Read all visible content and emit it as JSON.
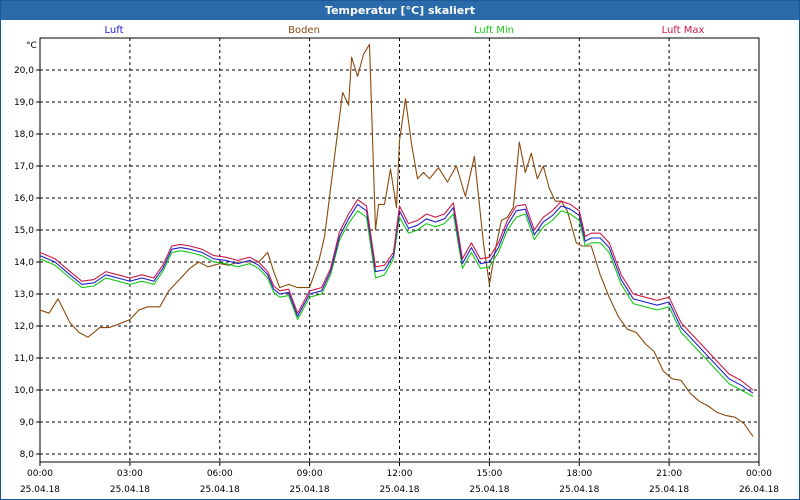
{
  "window": {
    "title": "Temperatur [°C] skaliert"
  },
  "chart_data": {
    "type": "line",
    "title": "Temperatur [°C] skaliert",
    "ylabel": "°C",
    "xlabel": "",
    "ylim": [
      8.0,
      21.0
    ],
    "xlim": [
      0,
      24
    ],
    "grid": true,
    "yticks": [
      8.0,
      9.0,
      10.0,
      11.0,
      12.0,
      13.0,
      14.0,
      15.0,
      16.0,
      17.0,
      18.0,
      19.0,
      20.0
    ],
    "ytick_labels": [
      "8,0",
      "9,0",
      "10,0",
      "11,0",
      "12,0",
      "13,0",
      "14,0",
      "15,0",
      "16,0",
      "17,0",
      "18,0",
      "19,0",
      "20,0"
    ],
    "xticks": [
      0,
      3,
      6,
      9,
      12,
      15,
      18,
      21,
      24
    ],
    "xtick_labels": [
      {
        "time": "00:00",
        "date": "25.04.18"
      },
      {
        "time": "03:00",
        "date": "25.04.18"
      },
      {
        "time": "06:00",
        "date": "25.04.18"
      },
      {
        "time": "09:00",
        "date": "25.04.18"
      },
      {
        "time": "12:00",
        "date": "25.04.18"
      },
      {
        "time": "15:00",
        "date": "25.04.18"
      },
      {
        "time": "18:00",
        "date": "25.04.18"
      },
      {
        "time": "21:00",
        "date": "25.04.18"
      },
      {
        "time": "00:00",
        "date": "26.04.18"
      }
    ],
    "series": [
      {
        "name": "Boden",
        "color": "#8b4a0c",
        "x": [
          0,
          0.3,
          0.6,
          1.0,
          1.3,
          1.6,
          2.0,
          2.3,
          2.6,
          3.0,
          3.3,
          3.6,
          4.0,
          4.3,
          4.6,
          5.0,
          5.3,
          5.6,
          6.0,
          6.3,
          6.6,
          7.0,
          7.3,
          7.6,
          7.8,
          8.0,
          8.3,
          8.6,
          9.0,
          9.3,
          9.5,
          9.7,
          9.9,
          10.1,
          10.3,
          10.4,
          10.6,
          10.8,
          11.0,
          11.2,
          11.3,
          11.5,
          11.7,
          11.9,
          12.0,
          12.2,
          12.4,
          12.6,
          12.8,
          13.0,
          13.3,
          13.6,
          13.9,
          14.2,
          14.5,
          14.8,
          15.0,
          15.2,
          15.4,
          15.6,
          15.8,
          16.0,
          16.2,
          16.4,
          16.6,
          16.8,
          17.0,
          17.2,
          17.4,
          17.6,
          17.9,
          18.1,
          18.4,
          18.7,
          19.0,
          19.3,
          19.6,
          19.9,
          20.2,
          20.5,
          20.8,
          21.1,
          21.4,
          21.7,
          22.0,
          22.3,
          22.6,
          22.9,
          23.2,
          23.5,
          23.8
        ],
        "values": [
          12.5,
          12.4,
          12.85,
          12.1,
          11.8,
          11.65,
          11.95,
          11.95,
          12.05,
          12.2,
          12.5,
          12.6,
          12.6,
          13.1,
          13.4,
          13.8,
          14.0,
          13.85,
          13.95,
          13.9,
          14.0,
          14.0,
          14.0,
          14.3,
          13.7,
          13.2,
          13.3,
          13.2,
          13.2,
          14.0,
          14.8,
          16.3,
          17.8,
          19.3,
          18.9,
          20.4,
          19.8,
          20.5,
          20.8,
          15.0,
          15.8,
          15.8,
          16.9,
          15.7,
          17.8,
          19.1,
          17.7,
          16.6,
          16.8,
          16.6,
          16.95,
          16.5,
          17.0,
          16.05,
          17.3,
          14.6,
          13.3,
          14.4,
          15.3,
          15.4,
          15.7,
          17.75,
          16.8,
          17.4,
          16.6,
          17.0,
          16.3,
          15.9,
          15.9,
          15.6,
          14.6,
          14.5,
          14.5,
          13.6,
          12.9,
          12.3,
          11.9,
          11.8,
          11.45,
          11.2,
          10.6,
          10.35,
          10.3,
          9.9,
          9.65,
          9.5,
          9.3,
          9.2,
          9.15,
          8.95,
          8.55
        ]
      },
      {
        "name": "Luft Min",
        "color": "#18c818",
        "x": [
          0,
          0.5,
          1.0,
          1.4,
          1.8,
          2.2,
          2.6,
          3.0,
          3.4,
          3.8,
          4.1,
          4.4,
          4.7,
          5.0,
          5.4,
          5.8,
          6.2,
          6.6,
          7.0,
          7.3,
          7.6,
          7.8,
          8.0,
          8.3,
          8.6,
          9.0,
          9.4,
          9.7,
          10.0,
          10.3,
          10.6,
          10.9,
          11.2,
          11.5,
          11.8,
          12.0,
          12.3,
          12.6,
          12.9,
          13.2,
          13.5,
          13.8,
          14.1,
          14.4,
          14.7,
          15.0,
          15.3,
          15.6,
          15.9,
          16.2,
          16.5,
          16.8,
          17.1,
          17.4,
          17.7,
          18.0,
          18.2,
          18.4,
          18.7,
          19.0,
          19.4,
          19.8,
          20.2,
          20.6,
          21.0,
          21.4,
          21.8,
          22.2,
          22.6,
          23.0,
          23.4,
          23.8
        ],
        "values": [
          14.1,
          13.9,
          13.5,
          13.2,
          13.25,
          13.5,
          13.4,
          13.3,
          13.4,
          13.3,
          13.7,
          14.3,
          14.35,
          14.3,
          14.2,
          14.0,
          13.95,
          13.85,
          13.95,
          13.8,
          13.5,
          13.05,
          12.9,
          12.95,
          12.2,
          12.9,
          13.0,
          13.6,
          14.7,
          15.2,
          15.6,
          15.4,
          13.5,
          13.6,
          14.1,
          15.4,
          14.9,
          15.0,
          15.2,
          15.1,
          15.2,
          15.5,
          13.8,
          14.3,
          13.8,
          13.85,
          14.3,
          15.0,
          15.4,
          15.5,
          14.7,
          15.1,
          15.3,
          15.6,
          15.5,
          15.3,
          14.5,
          14.6,
          14.6,
          14.3,
          13.3,
          12.7,
          12.6,
          12.5,
          12.6,
          11.8,
          11.4,
          11.0,
          10.6,
          10.2,
          10.0,
          9.8
        ]
      },
      {
        "name": "Luft",
        "color": "#2222cc",
        "x": [
          0,
          0.5,
          1.0,
          1.4,
          1.8,
          2.2,
          2.6,
          3.0,
          3.4,
          3.8,
          4.1,
          4.4,
          4.7,
          5.0,
          5.4,
          5.8,
          6.2,
          6.6,
          7.0,
          7.3,
          7.6,
          7.8,
          8.0,
          8.3,
          8.6,
          9.0,
          9.4,
          9.7,
          10.0,
          10.3,
          10.6,
          10.9,
          11.2,
          11.5,
          11.8,
          12.0,
          12.3,
          12.6,
          12.9,
          13.2,
          13.5,
          13.8,
          14.1,
          14.4,
          14.7,
          15.0,
          15.3,
          15.6,
          15.9,
          16.2,
          16.5,
          16.8,
          17.1,
          17.4,
          17.7,
          18.0,
          18.2,
          18.4,
          18.7,
          19.0,
          19.4,
          19.8,
          20.2,
          20.6,
          21.0,
          21.4,
          21.8,
          22.2,
          22.6,
          23.0,
          23.4,
          23.8
        ],
        "values": [
          14.2,
          14.0,
          13.6,
          13.3,
          13.35,
          13.6,
          13.5,
          13.4,
          13.5,
          13.4,
          13.8,
          14.4,
          14.45,
          14.4,
          14.3,
          14.1,
          14.05,
          13.95,
          14.05,
          13.9,
          13.6,
          13.15,
          13.0,
          13.05,
          12.3,
          13.0,
          13.1,
          13.7,
          14.8,
          15.35,
          15.8,
          15.6,
          13.7,
          13.75,
          14.2,
          15.6,
          15.05,
          15.15,
          15.35,
          15.25,
          15.35,
          15.7,
          13.95,
          14.45,
          13.95,
          14.0,
          14.45,
          15.15,
          15.6,
          15.65,
          14.85,
          15.25,
          15.45,
          15.75,
          15.65,
          15.45,
          14.65,
          14.75,
          14.75,
          14.45,
          13.45,
          12.85,
          12.75,
          12.65,
          12.75,
          11.95,
          11.55,
          11.15,
          10.75,
          10.35,
          10.15,
          9.9
        ]
      },
      {
        "name": "Luft Max",
        "color": "#cc1a4a",
        "x": [
          0,
          0.5,
          1.0,
          1.4,
          1.8,
          2.2,
          2.6,
          3.0,
          3.4,
          3.8,
          4.1,
          4.4,
          4.7,
          5.0,
          5.4,
          5.8,
          6.2,
          6.6,
          7.0,
          7.3,
          7.6,
          7.8,
          8.0,
          8.3,
          8.6,
          9.0,
          9.4,
          9.7,
          10.0,
          10.3,
          10.6,
          10.9,
          11.2,
          11.5,
          11.8,
          12.0,
          12.3,
          12.6,
          12.9,
          13.2,
          13.5,
          13.8,
          14.1,
          14.4,
          14.7,
          15.0,
          15.3,
          15.6,
          15.9,
          16.2,
          16.5,
          16.8,
          17.1,
          17.4,
          17.7,
          18.0,
          18.2,
          18.4,
          18.7,
          19.0,
          19.4,
          19.8,
          20.2,
          20.6,
          21.0,
          21.4,
          21.8,
          22.2,
          22.6,
          23.0,
          23.4,
          23.8
        ],
        "values": [
          14.3,
          14.1,
          13.7,
          13.4,
          13.45,
          13.7,
          13.6,
          13.5,
          13.6,
          13.5,
          13.9,
          14.5,
          14.55,
          14.5,
          14.4,
          14.2,
          14.15,
          14.05,
          14.15,
          14.0,
          13.7,
          13.25,
          13.1,
          13.15,
          12.4,
          13.1,
          13.2,
          13.8,
          14.95,
          15.5,
          15.95,
          15.75,
          13.85,
          13.9,
          14.3,
          15.75,
          15.2,
          15.3,
          15.5,
          15.4,
          15.5,
          15.85,
          14.1,
          14.6,
          14.1,
          14.15,
          14.6,
          15.3,
          15.75,
          15.8,
          15.0,
          15.4,
          15.6,
          15.9,
          15.8,
          15.6,
          14.8,
          14.9,
          14.9,
          14.6,
          13.6,
          13.0,
          12.9,
          12.8,
          12.9,
          12.1,
          11.7,
          11.3,
          10.9,
          10.5,
          10.3,
          10.0
        ]
      }
    ],
    "legend": [
      {
        "name": "Luft",
        "color": "#2222cc"
      },
      {
        "name": "Boden",
        "color": "#8b4a0c"
      },
      {
        "name": "Luft Min",
        "color": "#18c818"
      },
      {
        "name": "Luft Max",
        "color": "#cc1a4a"
      }
    ]
  }
}
